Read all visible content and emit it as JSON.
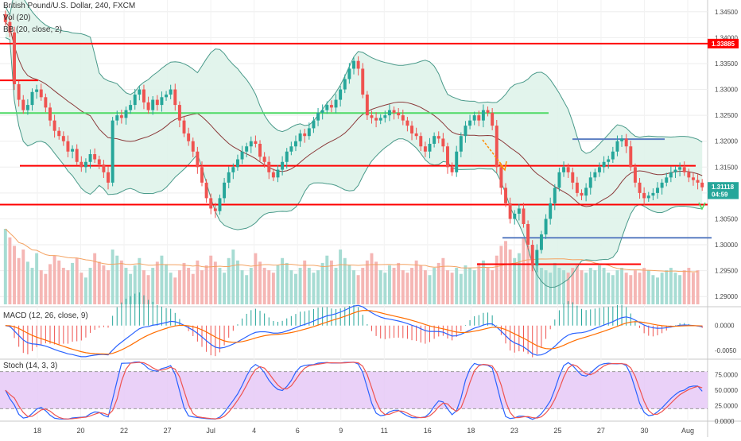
{
  "header": {
    "symbol_line": "British Pound/U.S. Dollar, 240, FXCM",
    "vol_label": "Vol (20)",
    "bb_label": "BB (20, close, 2)",
    "macd_label": "MACD (12, 26, close, 9)",
    "stoch_label": "Stoch (14, 3, 3)"
  },
  "colors": {
    "up": "#26a69a",
    "down": "#ef5350",
    "bb_fill": "#dff3ea",
    "bb_band": "#4a9a8a",
    "bb_mid": "#8b3a3a",
    "red_level": "#ff0000",
    "green_level": "#4cd964",
    "blue_level": "#5b7ec2",
    "macd_line": "#2962ff",
    "signal_line": "#ff6d00",
    "stoch_fill": "#e6c9f7"
  },
  "chart_data": [
    {
      "type": "candlestick",
      "y_axis": {
        "ticks": [
          "1.34500",
          "1.34000",
          "1.33500",
          "1.33000",
          "1.32500",
          "1.32000",
          "1.31500",
          "1.31000",
          "1.30500",
          "1.30000",
          "1.29500",
          "1.29000"
        ],
        "ylim": [
          1.2885,
          1.3465
        ]
      },
      "x_axis": {
        "ticks": [
          "18",
          "20",
          "22",
          "27",
          "Jul",
          "4",
          "6",
          "9",
          "11",
          "16",
          "18",
          "23",
          "25",
          "27",
          "30",
          "Aug"
        ]
      },
      "price_labels": [
        {
          "text": "1.33885",
          "value": 1.33885
        },
        {
          "text": "1.31118",
          "value": 1.31118
        },
        {
          "text": "04:59",
          "value": 1.30975
        }
      ],
      "horizontal_levels": [
        {
          "color": "red",
          "value": 1.33885
        },
        {
          "color": "red",
          "value": 1.31525
        },
        {
          "color": "red",
          "value": 1.30775
        },
        {
          "color": "red",
          "value": 1.33175
        },
        {
          "color": "red",
          "value": 1.29625
        },
        {
          "color": "green",
          "value": 1.32545
        },
        {
          "color": "blue",
          "value": 1.3204
        },
        {
          "color": "blue",
          "value": 1.30135
        }
      ],
      "close_series": [
        1.343,
        1.341,
        1.331,
        1.328,
        1.326,
        1.327,
        1.3295,
        1.33,
        1.3285,
        1.3265,
        1.324,
        1.322,
        1.321,
        1.32,
        1.318,
        1.3185,
        1.316,
        1.315,
        1.316,
        1.3175,
        1.3165,
        1.3155,
        1.314,
        1.312,
        1.324,
        1.325,
        1.3245,
        1.326,
        1.327,
        1.329,
        1.33,
        1.3275,
        1.326,
        1.328,
        1.327,
        1.3285,
        1.329,
        1.33,
        1.327,
        1.324,
        1.3215,
        1.32,
        1.318,
        1.315,
        1.312,
        1.309,
        1.307,
        1.3065,
        1.309,
        1.312,
        1.314,
        1.315,
        1.3165,
        1.318,
        1.319,
        1.32,
        1.3195,
        1.317,
        1.316,
        1.314,
        1.313,
        1.3145,
        1.316,
        1.318,
        1.319,
        1.32,
        1.3215,
        1.321,
        1.3225,
        1.324,
        1.3255,
        1.326,
        1.327,
        1.3265,
        1.328,
        1.33,
        1.332,
        1.334,
        1.3355,
        1.334,
        1.329,
        1.325,
        1.3245,
        1.324,
        1.3245,
        1.325,
        1.326,
        1.3255,
        1.325,
        1.324,
        1.323,
        1.3215,
        1.321,
        1.319,
        1.318,
        1.3195,
        1.321,
        1.3205,
        1.319,
        1.315,
        1.314,
        1.318,
        1.321,
        1.323,
        1.324,
        1.325,
        1.324,
        1.326,
        1.3255,
        1.323,
        1.315,
        1.311,
        1.308,
        1.305,
        1.306,
        1.307,
        1.304,
        1.3,
        1.296,
        1.299,
        1.302,
        1.305,
        1.308,
        1.311,
        1.314,
        1.315,
        1.314,
        1.312,
        1.31,
        1.3095,
        1.311,
        1.313,
        1.314,
        1.315,
        1.316,
        1.3165,
        1.318,
        1.32,
        1.3205,
        1.319,
        1.315,
        1.312,
        1.31,
        1.309,
        1.3095,
        1.31,
        1.311,
        1.312,
        1.313,
        1.314,
        1.3145,
        1.315,
        1.314,
        1.313,
        1.3125,
        1.312,
        1.3111
      ],
      "annotations": [
        {
          "type": "arrow",
          "color": "orange",
          "direction": "down-right"
        },
        {
          "type": "arrow",
          "color": "green",
          "direction": "down"
        }
      ]
    },
    {
      "type": "bar",
      "name": "Vol (20)",
      "values": [
        62,
        55,
        48,
        38,
        45,
        35,
        30,
        42,
        28,
        25,
        33,
        40,
        36,
        30,
        28,
        34,
        38,
        26,
        22,
        30,
        42,
        35,
        32,
        28,
        45,
        40,
        36,
        30,
        25,
        32,
        38,
        28,
        24,
        30,
        35,
        40,
        33,
        26,
        22,
        28,
        34,
        30,
        25,
        36,
        28,
        32,
        40,
        35,
        30,
        26,
        38,
        45,
        36,
        28,
        24,
        30,
        42,
        35,
        30,
        28,
        26,
        32,
        38,
        34,
        28,
        25,
        30,
        36,
        30,
        26,
        28,
        34,
        40,
        36,
        30,
        45,
        38,
        32,
        28,
        24,
        30,
        36,
        42,
        35,
        28,
        26,
        32,
        30,
        34,
        28,
        26,
        30,
        36,
        32,
        28,
        24,
        30,
        34,
        38,
        28,
        26,
        30,
        25,
        32,
        30,
        28,
        34,
        36,
        30,
        28,
        40,
        48,
        52,
        45,
        38,
        42,
        55,
        48,
        40,
        35,
        30,
        28,
        26,
        34,
        30,
        28,
        26,
        30,
        32,
        28,
        26,
        30,
        28,
        32,
        30,
        26,
        24,
        28,
        30,
        26,
        24,
        28,
        26,
        30,
        28,
        24,
        22,
        26,
        28,
        30,
        26,
        24,
        28,
        30,
        26,
        28
      ],
      "ma_label": "Vol MA"
    },
    {
      "type": "line",
      "name": "MACD (12, 26, close, 9)",
      "y_ticks": [
        "0.0000",
        "-0.0050"
      ],
      "ylim": [
        -0.0068,
        0.0035
      ]
    },
    {
      "type": "line",
      "name": "Stoch (14, 3, 3)",
      "y_ticks": [
        "75.0000",
        "50.0000",
        "25.0000",
        "0.0000"
      ],
      "ylim": [
        0,
        100
      ],
      "bands": [
        80,
        20
      ]
    }
  ]
}
